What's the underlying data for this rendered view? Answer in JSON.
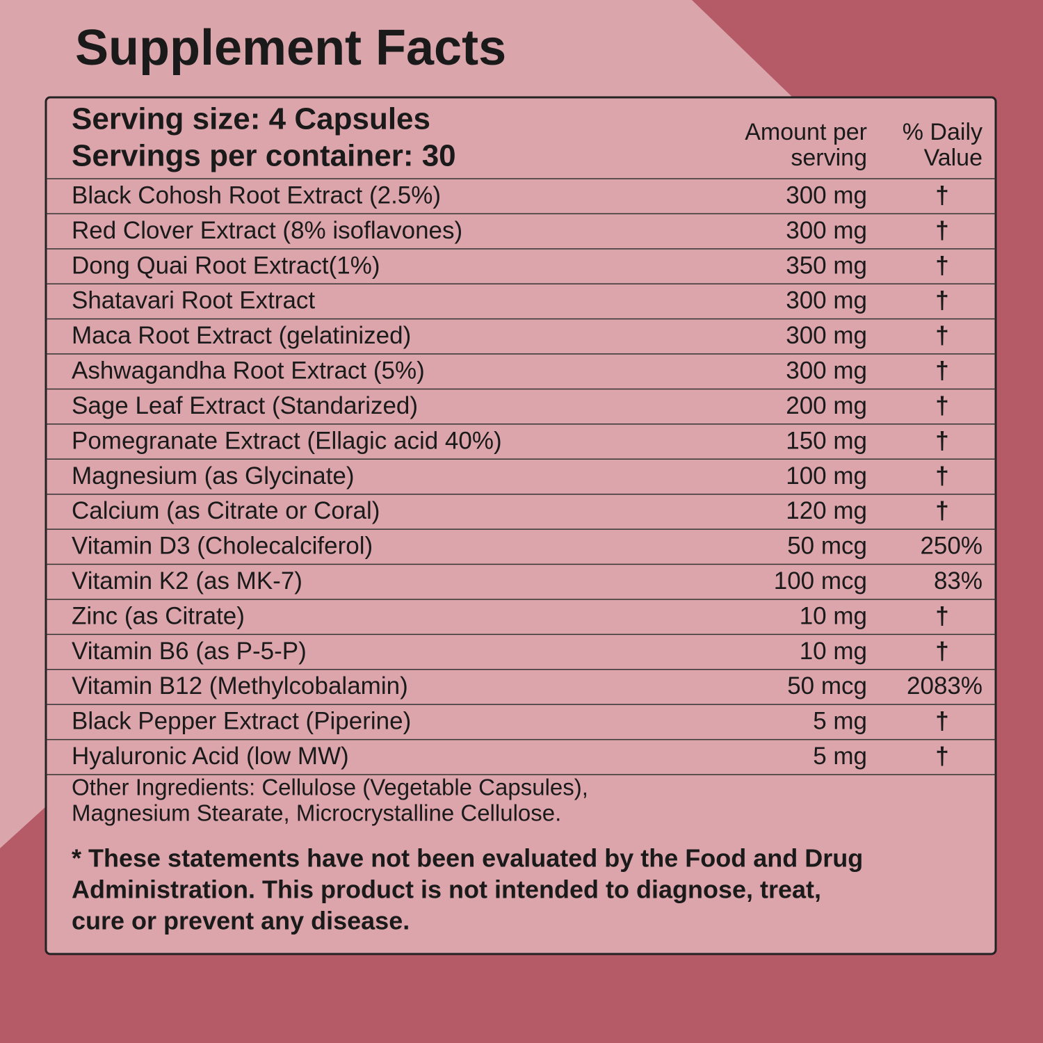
{
  "title": "Supplement Facts",
  "header": {
    "serving_size": "Serving size: 4 Capsules",
    "servings_per_container": "Servings per container: 30",
    "amount_heading": [
      "Amount per",
      "serving"
    ],
    "dv_heading": [
      "% Daily",
      "Value"
    ]
  },
  "rows": [
    {
      "name": "Black Cohosh Root Extract (2.5%)",
      "amount": "300 mg",
      "dv": "†"
    },
    {
      "name": "Red Clover Extract (8% isoflavones)",
      "amount": "300 mg",
      "dv": "†"
    },
    {
      "name": "Dong Quai Root Extract(1%)",
      "amount": "350 mg",
      "dv": "†"
    },
    {
      "name": "Shatavari Root Extract",
      "amount": "300 mg",
      "dv": "†"
    },
    {
      "name": "Maca Root Extract (gelatinized)",
      "amount": "300 mg",
      "dv": "†"
    },
    {
      "name": "Ashwagandha Root Extract (5%)",
      "amount": "300 mg",
      "dv": "†"
    },
    {
      "name": "Sage Leaf Extract (Standarized)",
      "amount": "200 mg",
      "dv": "†"
    },
    {
      "name": "Pomegranate Extract (Ellagic acid 40%)",
      "amount": "150 mg",
      "dv": "†"
    },
    {
      "name": "Magnesium (as Glycinate)",
      "amount": "100 mg",
      "dv": "†"
    },
    {
      "name": "Calcium (as Citrate or Coral)",
      "amount": "120 mg",
      "dv": "†"
    },
    {
      "name": "Vitamin D3 (Cholecalciferol)",
      "amount": "50 mcg",
      "dv": "250%"
    },
    {
      "name": "Vitamin K2 (as MK-7)",
      "amount": "100 mcg",
      "dv": "83%"
    },
    {
      "name": "Zinc (as Citrate)",
      "amount": "10 mg",
      "dv": "†"
    },
    {
      "name": "Vitamin B6 (as P-5-P)",
      "amount": "10 mg",
      "dv": "†"
    },
    {
      "name": "Vitamin B12 (Methylcobalamin)",
      "amount": "50 mcg",
      "dv": "2083%"
    },
    {
      "name": "Black Pepper Extract (Piperine)",
      "amount": "5 mg",
      "dv": "†"
    },
    {
      "name": "Hyaluronic Acid (low MW)",
      "amount": "5 mg",
      "dv": "†"
    }
  ],
  "other_ingredients": [
    "Other Ingredients: Cellulose (Vegetable Capsules),",
    "Magnesium Stearate, Microcrystalline Cellulose."
  ],
  "disclaimer": [
    "* These statements have not been evaluated by the Food and Drug",
    "Administration. This product is not intended to diagnose, treat,",
    "cure or prevent any disease."
  ]
}
